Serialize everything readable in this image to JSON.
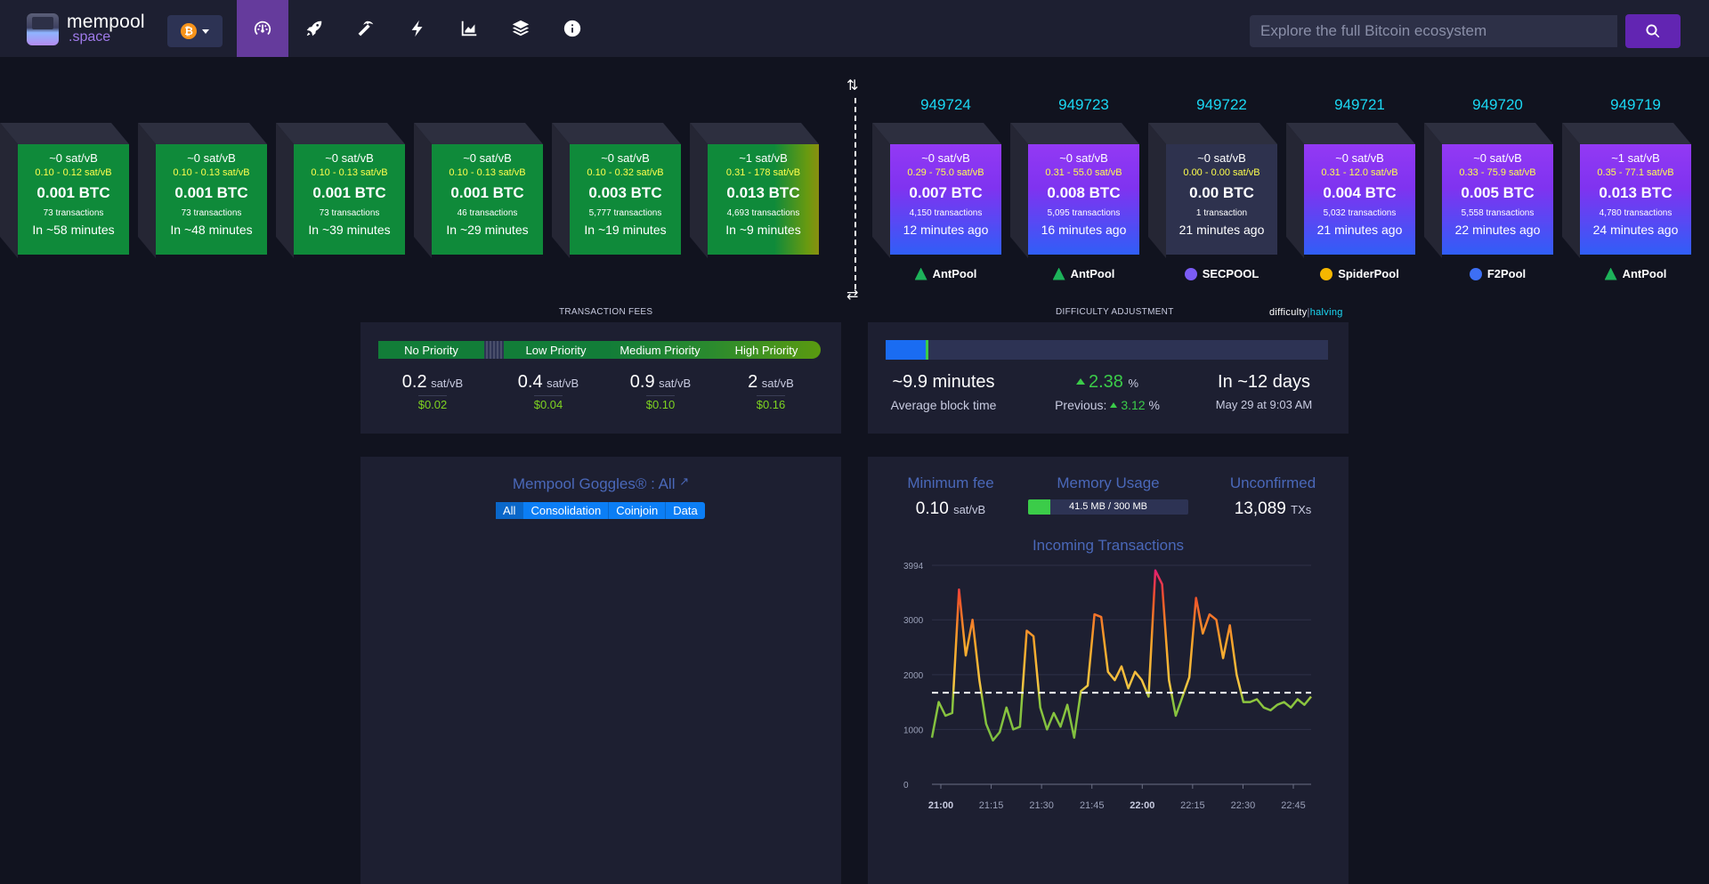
{
  "header": {
    "logo_line1": "mempool",
    "logo_line2": ".space",
    "network_symbol": "₿",
    "nav_icons": [
      "dashboard-icon",
      "rocket-icon",
      "pickaxe-icon",
      "lightning-icon",
      "chart-icon",
      "layers-icon",
      "info-icon"
    ],
    "search_placeholder": "Explore the full Bitcoin ecosystem"
  },
  "mempool_blocks": [
    {
      "fee": "~0 sat/vB",
      "range": "0.10 - 0.12 sat/vB",
      "amount": "0.001 BTC",
      "txs": "73 transactions",
      "time": "In ~58 minutes"
    },
    {
      "fee": "~0 sat/vB",
      "range": "0.10 - 0.13 sat/vB",
      "amount": "0.001 BTC",
      "txs": "73 transactions",
      "time": "In ~48 minutes"
    },
    {
      "fee": "~0 sat/vB",
      "range": "0.10 - 0.13 sat/vB",
      "amount": "0.001 BTC",
      "txs": "73 transactions",
      "time": "In ~39 minutes"
    },
    {
      "fee": "~0 sat/vB",
      "range": "0.10 - 0.13 sat/vB",
      "amount": "0.001 BTC",
      "txs": "46 transactions",
      "time": "In ~29 minutes"
    },
    {
      "fee": "~0 sat/vB",
      "range": "0.10 - 0.32 sat/vB",
      "amount": "0.003 BTC",
      "txs": "5,777 transactions",
      "time": "In ~19 minutes"
    },
    {
      "fee": "~1 sat/vB",
      "range": "0.31 - 178 sat/vB",
      "amount": "0.013 BTC",
      "txs": "4,693 transactions",
      "time": "In ~9 minutes"
    }
  ],
  "mined_blocks": [
    {
      "height": "949724",
      "fee": "~0 sat/vB",
      "range": "0.29 - 75.0 sat/vB",
      "amount": "0.007 BTC",
      "txs": "4,150 transactions",
      "time": "12 minutes ago",
      "pool": "AntPool",
      "pool_icon": "antpool-icon",
      "empty": false
    },
    {
      "height": "949723",
      "fee": "~0 sat/vB",
      "range": "0.31 - 55.0 sat/vB",
      "amount": "0.008 BTC",
      "txs": "5,095 transactions",
      "time": "16 minutes ago",
      "pool": "AntPool",
      "pool_icon": "antpool-icon",
      "empty": false
    },
    {
      "height": "949722",
      "fee": "~0 sat/vB",
      "range": "0.00 - 0.00 sat/vB",
      "amount": "0.00 BTC",
      "txs": "1 transaction",
      "time": "21 minutes ago",
      "pool": "SECPOOL",
      "pool_icon": "secpool-icon",
      "empty": true
    },
    {
      "height": "949721",
      "fee": "~0 sat/vB",
      "range": "0.31 - 12.0 sat/vB",
      "amount": "0.004 BTC",
      "txs": "5,032 transactions",
      "time": "21 minutes ago",
      "pool": "SpiderPool",
      "pool_icon": "spiderpool-icon",
      "empty": false
    },
    {
      "height": "949720",
      "fee": "~0 sat/vB",
      "range": "0.33 - 75.9 sat/vB",
      "amount": "0.005 BTC",
      "txs": "5,558 transactions",
      "time": "22 minutes ago",
      "pool": "F2Pool",
      "pool_icon": "f2pool-icon",
      "empty": false
    },
    {
      "height": "949719",
      "fee": "~1 sat/vB",
      "range": "0.35 - 77.1 sat/vB",
      "amount": "0.013 BTC",
      "txs": "4,780 transactions",
      "time": "24 minutes ago",
      "pool": "AntPool",
      "pool_icon": "antpool-icon",
      "empty": false
    }
  ],
  "fees": {
    "section_title": "TRANSACTION FEES",
    "labels": [
      "No Priority",
      "Low Priority",
      "Medium Priority",
      "High Priority"
    ],
    "values": [
      {
        "value": "0.2",
        "unit": "sat/vB",
        "usd": "$0.02"
      },
      {
        "value": "0.4",
        "unit": "sat/vB",
        "usd": "$0.04"
      },
      {
        "value": "0.9",
        "unit": "sat/vB",
        "usd": "$0.10"
      },
      {
        "value": "2",
        "unit": "sat/vB",
        "usd": "$0.16"
      }
    ]
  },
  "difficulty": {
    "section_title": "DIFFICULTY ADJUSTMENT",
    "toggle_difficulty": "difficulty",
    "toggle_sep": "|",
    "toggle_halving": "halving",
    "progress_fraction": 0.09,
    "avg_time": "~9.9 minutes",
    "avg_label": "Average block time",
    "change": "2.38",
    "change_unit": "%",
    "previous_label": "Previous:",
    "previous": "3.12",
    "previous_unit": "%",
    "eta": "In ~12 days",
    "eta_date": "May 29 at 9:03 AM"
  },
  "goggles": {
    "title": "Mempool Goggles® : All",
    "tabs": [
      "All",
      "Consolidation",
      "Coinjoin",
      "Data"
    ]
  },
  "stats": {
    "min_fee_label": "Minimum fee",
    "min_fee_value": "0.10",
    "min_fee_unit": "sat/vB",
    "memory_label": "Memory Usage",
    "memory_value": "41.5 MB / 300 MB",
    "memory_fraction": 0.138,
    "unconfirmed_label": "Unconfirmed",
    "unconfirmed_value": "13,089",
    "unconfirmed_unit": "TXs"
  },
  "chart_data": {
    "type": "line",
    "title": "Incoming Transactions",
    "yticks": [
      "0",
      "1000",
      "2000",
      "3000",
      "3994"
    ],
    "xticks": [
      "21:00",
      "21:15",
      "21:30",
      "21:45",
      "22:00",
      "22:15",
      "22:30",
      "22:45"
    ],
    "ylim": [
      0,
      3994
    ],
    "reference_line": 1670,
    "x": [
      0,
      2,
      4,
      6,
      8,
      10,
      12,
      14,
      16,
      18,
      20,
      22,
      24,
      26,
      28,
      30,
      32,
      34,
      36,
      38,
      40,
      42,
      44,
      46,
      48,
      50,
      52,
      54,
      56,
      58,
      60,
      62,
      64,
      66,
      68,
      70,
      72,
      74,
      76,
      78,
      80,
      82,
      84,
      86,
      88,
      90,
      92,
      94,
      96,
      98,
      100,
      102,
      104,
      106,
      108,
      110,
      112
    ],
    "values": [
      850,
      1500,
      1250,
      1300,
      3550,
      2350,
      3000,
      1900,
      1100,
      800,
      950,
      1400,
      1000,
      1050,
      2800,
      2700,
      1400,
      1000,
      1300,
      1050,
      1450,
      850,
      1700,
      1800,
      3100,
      3050,
      2050,
      1900,
      2150,
      1750,
      2050,
      1900,
      1600,
      3900,
      3650,
      1900,
      1250,
      1600,
      1950,
      3400,
      2750,
      3100,
      3000,
      2300,
      2900,
      2000,
      1500,
      1500,
      1550,
      1400,
      1350,
      1450,
      1500,
      1400,
      1550,
      1450,
      1600
    ],
    "grid": true
  }
}
